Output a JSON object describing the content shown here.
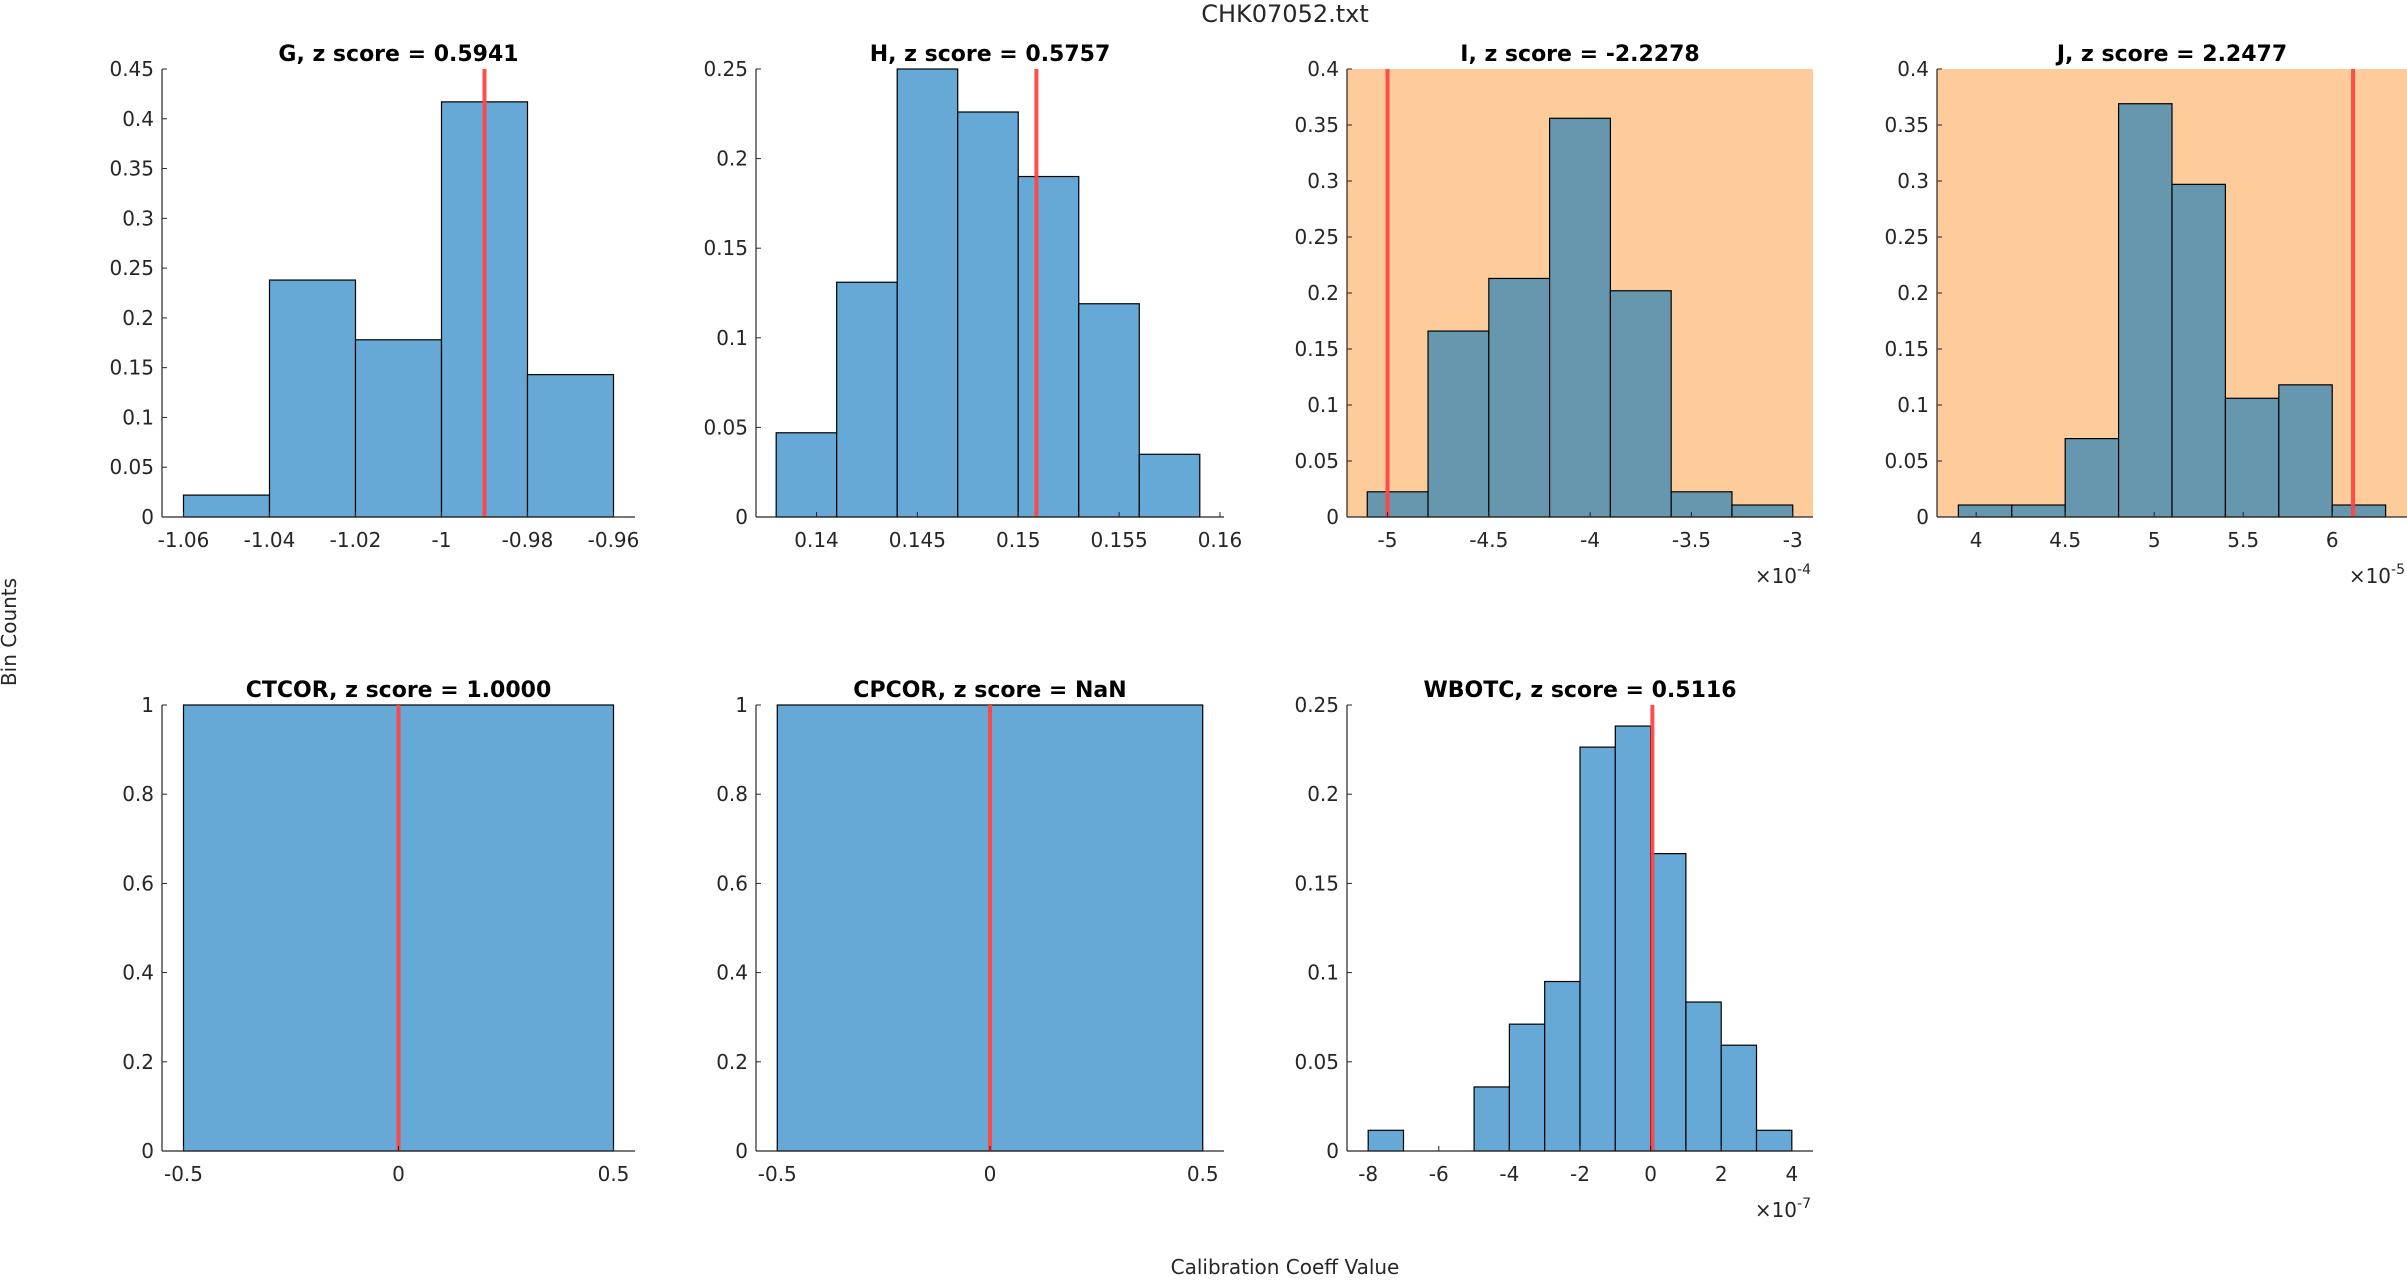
{
  "figure": {
    "title": "CHK07052.txt",
    "xlabel": "Calibration Coeff Value",
    "ylabel": "Bin Counts",
    "colors": {
      "bar_fill": "#66a9d6",
      "bar_fill_flagged": "#6797ae",
      "bar_edge": "#000000",
      "flag_background": "#fecb9a",
      "marker_line": "#ff4545"
    }
  },
  "chart_data": [
    {
      "type": "bar",
      "subtype": "histogram",
      "title": "G, z score = 0.5941",
      "flagged": false,
      "bin_edges": [
        -1.06,
        -1.04,
        -1.02,
        -1.0,
        -0.98,
        -0.96
      ],
      "values": [
        0.022,
        0.238,
        0.178,
        0.417,
        0.143
      ],
      "marker_x": -0.99,
      "xlim": [
        -1.065,
        -0.955
      ],
      "ylim": [
        0,
        0.45
      ],
      "xticks": [
        -1.06,
        -1.04,
        -1.02,
        -1,
        -0.98,
        -0.96
      ],
      "xtick_labels": [
        "-1.06",
        "-1.04",
        "-1.02",
        "-1",
        "-0.98",
        "-0.96"
      ],
      "yticks": [
        0,
        0.05,
        0.1,
        0.15,
        0.2,
        0.25,
        0.3,
        0.35,
        0.4,
        0.45
      ],
      "ytick_labels": [
        "0",
        "0.05",
        "0.1",
        "0.15",
        "0.2",
        "0.25",
        "0.3",
        "0.35",
        "0.4",
        "0.45"
      ],
      "exponent_label": ""
    },
    {
      "type": "bar",
      "subtype": "histogram",
      "title": "H, z score = 0.5757",
      "flagged": false,
      "bin_edges": [
        0.138,
        0.141,
        0.144,
        0.147,
        0.15,
        0.153,
        0.156,
        0.159
      ],
      "values": [
        0.047,
        0.131,
        0.25,
        0.226,
        0.19,
        0.119,
        0.035
      ],
      "marker_x": 0.1509,
      "xlim": [
        0.137,
        0.1602
      ],
      "ylim": [
        0,
        0.25
      ],
      "xticks": [
        0.14,
        0.145,
        0.15,
        0.155,
        0.16
      ],
      "xtick_labels": [
        "0.14",
        "0.145",
        "0.15",
        "0.155",
        "0.16"
      ],
      "yticks": [
        0,
        0.05,
        0.1,
        0.15,
        0.2,
        0.25
      ],
      "ytick_labels": [
        "0",
        "0.05",
        "0.1",
        "0.15",
        "0.2",
        "0.25"
      ],
      "exponent_label": ""
    },
    {
      "type": "bar",
      "subtype": "histogram",
      "title": "I, z score = -2.2278",
      "flagged": true,
      "bin_edges": [
        -5.1,
        -4.8,
        -4.5,
        -4.2,
        -3.9,
        -3.6,
        -3.3,
        -3.0
      ],
      "values": [
        0.0225,
        0.166,
        0.213,
        0.356,
        0.202,
        0.0225,
        0.0107
      ],
      "marker_x": -5.0,
      "xlim": [
        -5.2,
        -2.9
      ],
      "ylim": [
        0,
        0.4
      ],
      "xticks": [
        -5,
        -4.5,
        -4,
        -3.5,
        -3
      ],
      "xtick_labels": [
        "-5",
        "-4.5",
        "-4",
        "-3.5",
        "-3"
      ],
      "yticks": [
        0,
        0.05,
        0.1,
        0.15,
        0.2,
        0.25,
        0.3,
        0.35,
        0.4
      ],
      "ytick_labels": [
        "0",
        "0.05",
        "0.1",
        "0.15",
        "0.2",
        "0.25",
        "0.3",
        "0.35",
        "0.4"
      ],
      "exponent_label": "×10",
      "exponent_power": "-4"
    },
    {
      "type": "bar",
      "subtype": "histogram",
      "title": "J, z score = 2.2477",
      "flagged": true,
      "bin_edges": [
        3.9,
        4.2,
        4.5,
        4.8,
        5.1,
        5.4,
        5.7,
        6.0,
        6.3
      ],
      "values": [
        0.0107,
        0.0107,
        0.07,
        0.369,
        0.297,
        0.106,
        0.118,
        0.0107
      ],
      "marker_x": 6.117,
      "xlim": [
        3.78,
        6.42
      ],
      "ylim": [
        0,
        0.4
      ],
      "xticks": [
        4,
        4.5,
        5,
        5.5,
        6
      ],
      "xtick_labels": [
        "4",
        "4.5",
        "5",
        "5.5",
        "6"
      ],
      "yticks": [
        0,
        0.05,
        0.1,
        0.15,
        0.2,
        0.25,
        0.3,
        0.35,
        0.4
      ],
      "ytick_labels": [
        "0",
        "0.05",
        "0.1",
        "0.15",
        "0.2",
        "0.25",
        "0.3",
        "0.35",
        "0.4"
      ],
      "exponent_label": "×10",
      "exponent_power": "-5"
    },
    {
      "type": "bar",
      "subtype": "histogram",
      "title": "CTCOR, z score = 1.0000",
      "flagged": false,
      "bin_edges": [
        -0.5,
        0.5
      ],
      "values": [
        1
      ],
      "marker_x": 0,
      "xlim": [
        -0.55,
        0.55
      ],
      "ylim": [
        0,
        1
      ],
      "xticks": [
        -0.5,
        0,
        0.5
      ],
      "xtick_labels": [
        "-0.5",
        "0",
        "0.5"
      ],
      "yticks": [
        0,
        0.2,
        0.4,
        0.6,
        0.8,
        1
      ],
      "ytick_labels": [
        "0",
        "0.2",
        "0.4",
        "0.6",
        "0.8",
        "1"
      ],
      "exponent_label": ""
    },
    {
      "type": "bar",
      "subtype": "histogram",
      "title": "CPCOR, z score = NaN",
      "flagged": false,
      "bin_edges": [
        -0.5,
        0.5
      ],
      "values": [
        1
      ],
      "marker_x": 0,
      "xlim": [
        -0.55,
        0.55
      ],
      "ylim": [
        0,
        1
      ],
      "xticks": [
        -0.5,
        0,
        0.5
      ],
      "xtick_labels": [
        "-0.5",
        "0",
        "0.5"
      ],
      "yticks": [
        0,
        0.2,
        0.4,
        0.6,
        0.8,
        1
      ],
      "ytick_labels": [
        "0",
        "0.2",
        "0.4",
        "0.6",
        "0.8",
        "1"
      ],
      "exponent_label": ""
    },
    {
      "type": "bar",
      "subtype": "histogram",
      "title": "WBOTC, z score = 0.5116",
      "flagged": false,
      "bin_edges": [
        -8,
        -7,
        -6,
        -5,
        -4,
        -3,
        -2,
        -1,
        0,
        1,
        2,
        3,
        4
      ],
      "values": [
        0.0116,
        0,
        0,
        0.0359,
        0.0711,
        0.095,
        0.2264,
        0.2382,
        0.1667,
        0.0835,
        0.0593,
        0.0116
      ],
      "marker_x": 0.05,
      "xlim": [
        -8.6,
        4.6
      ],
      "ylim": [
        0,
        0.25
      ],
      "xticks": [
        -8,
        -6,
        -4,
        -2,
        0,
        2,
        4
      ],
      "xtick_labels": [
        "-8",
        "-6",
        "-4",
        "-2",
        "0",
        "2",
        "4"
      ],
      "yticks": [
        0,
        0.05,
        0.1,
        0.15,
        0.2,
        0.25
      ],
      "ytick_labels": [
        "0",
        "0.05",
        "0.1",
        "0.15",
        "0.2",
        "0.25"
      ],
      "exponent_label": "×10",
      "exponent_power": "-7"
    }
  ]
}
